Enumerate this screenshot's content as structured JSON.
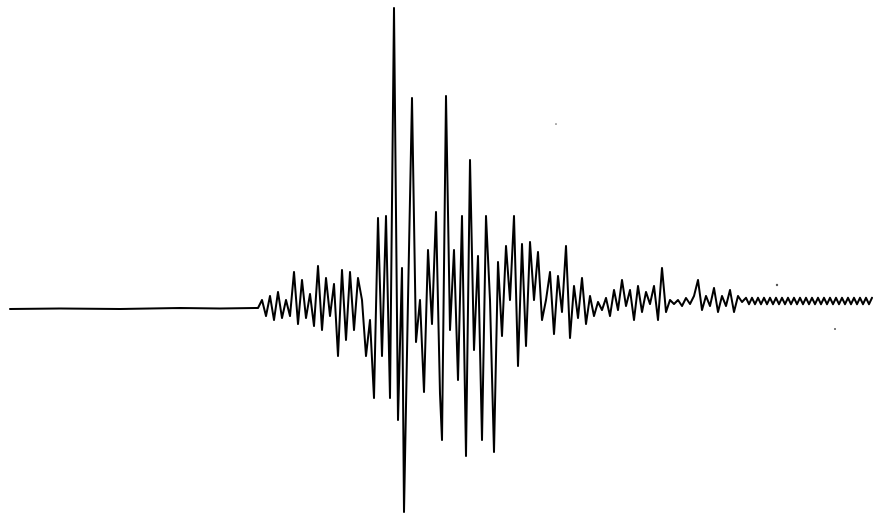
{
  "image": {
    "subject": "seismogram-trace",
    "background_color": "#ffffff",
    "trace_color": "#000000"
  }
}
